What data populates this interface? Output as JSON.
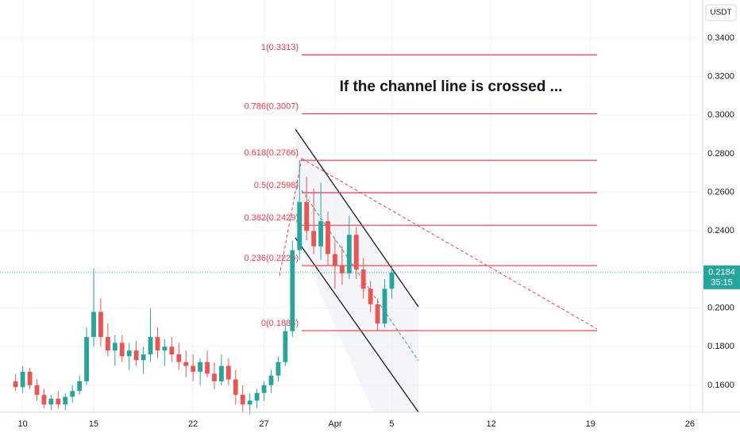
{
  "chart_data": {
    "type": "candlestick",
    "currency": "USDT",
    "annotation": "If the channel line is crossed ...",
    "last_price": 0.2184,
    "last_price_label": "0.2184",
    "countdown": "35:15",
    "up_color": "#26a69a",
    "down_color": "#ef5350",
    "fib_color": "#f23645",
    "grid": true,
    "xlim": [
      -1.6,
      47.9
    ],
    "ylim": [
      0.146,
      0.3597
    ],
    "xticks": [
      {
        "value": 0,
        "label": "10"
      },
      {
        "value": 5,
        "label": "15"
      },
      {
        "value": 12,
        "label": "22"
      },
      {
        "value": 17,
        "label": "27"
      },
      {
        "value": 22,
        "label": "Apr"
      },
      {
        "value": 26,
        "label": "5"
      },
      {
        "value": 33,
        "label": "12"
      },
      {
        "value": 40,
        "label": "19"
      },
      {
        "value": 47,
        "label": "26"
      }
    ],
    "yticks": [
      {
        "value": 0.16,
        "label": "0.1600"
      },
      {
        "value": 0.18,
        "label": "0.1800"
      },
      {
        "value": 0.2,
        "label": "0.2000"
      },
      {
        "value": 0.24,
        "label": "0.2400"
      },
      {
        "value": 0.26,
        "label": "0.2600"
      },
      {
        "value": 0.28,
        "label": "0.2800"
      },
      {
        "value": 0.3,
        "label": "0.3000"
      },
      {
        "value": 0.32,
        "label": "0.3200"
      },
      {
        "value": 0.34,
        "label": "0.3400"
      }
    ],
    "fib_levels": [
      {
        "label": "1(0.3313)",
        "value": 0.3313
      },
      {
        "label": "0.786(0.3007)",
        "value": 0.3007
      },
      {
        "label": "0.618(0.2766)",
        "value": 0.2766
      },
      {
        "label": "0.5(0.2598)",
        "value": 0.2598
      },
      {
        "label": "0.382(0.2429)",
        "value": 0.2429
      },
      {
        "label": "0.236(0.2220)",
        "value": 0.222
      },
      {
        "label": "0(0.1883)",
        "value": 0.1883
      }
    ],
    "x": [
      -0.5,
      0,
      0.5,
      1,
      1.5,
      2,
      2.5,
      3,
      3.5,
      4,
      4.5,
      5,
      5.5,
      6,
      6.5,
      7,
      7.5,
      8,
      8.5,
      9,
      9.5,
      10,
      10.5,
      11,
      11.5,
      12,
      12.5,
      13,
      13.5,
      14,
      14.5,
      15,
      15.5,
      16,
      16.5,
      17,
      17.5,
      18,
      18.5,
      19,
      19.5,
      20,
      20.5,
      21,
      21.5,
      22,
      22.5,
      23,
      23.5,
      24,
      24.5,
      25,
      25.5,
      26
    ],
    "open": [
      0.162,
      0.159,
      0.167,
      0.16,
      0.155,
      0.15,
      0.153,
      0.15,
      0.154,
      0.157,
      0.162,
      0.185,
      0.198,
      0.185,
      0.178,
      0.182,
      0.175,
      0.178,
      0.173,
      0.176,
      0.185,
      0.178,
      0.18,
      0.176,
      0.172,
      0.17,
      0.167,
      0.172,
      0.166,
      0.162,
      0.17,
      0.163,
      0.155,
      0.15,
      0.152,
      0.156,
      0.16,
      0.165,
      0.172,
      0.188,
      0.23,
      0.255,
      0.24,
      0.232,
      0.245,
      0.228,
      0.222,
      0.218,
      0.238,
      0.22,
      0.21,
      0.202,
      0.192,
      0.21
    ],
    "high": [
      0.166,
      0.17,
      0.169,
      0.163,
      0.158,
      0.155,
      0.157,
      0.156,
      0.16,
      0.165,
      0.19,
      0.2205,
      0.205,
      0.192,
      0.186,
      0.186,
      0.182,
      0.183,
      0.18,
      0.2,
      0.19,
      0.184,
      0.185,
      0.182,
      0.178,
      0.176,
      0.174,
      0.178,
      0.172,
      0.176,
      0.174,
      0.168,
      0.16,
      0.156,
      0.158,
      0.162,
      0.168,
      0.175,
      0.192,
      0.235,
      0.2766,
      0.268,
      0.262,
      0.265,
      0.25,
      0.236,
      0.232,
      0.248,
      0.242,
      0.226,
      0.214,
      0.205,
      0.215,
      0.222
    ],
    "low": [
      0.157,
      0.156,
      0.158,
      0.152,
      0.148,
      0.147,
      0.148,
      0.147,
      0.151,
      0.155,
      0.16,
      0.18,
      0.18,
      0.175,
      0.17,
      0.172,
      0.168,
      0.17,
      0.166,
      0.172,
      0.174,
      0.17,
      0.172,
      0.168,
      0.164,
      0.162,
      0.16,
      0.164,
      0.158,
      0.16,
      0.16,
      0.15,
      0.146,
      0.145,
      0.148,
      0.152,
      0.156,
      0.162,
      0.17,
      0.185,
      0.225,
      0.235,
      0.228,
      0.225,
      0.222,
      0.21,
      0.212,
      0.215,
      0.215,
      0.205,
      0.198,
      0.1883,
      0.19,
      0.205
    ],
    "close": [
      0.159,
      0.167,
      0.16,
      0.155,
      0.15,
      0.153,
      0.15,
      0.154,
      0.157,
      0.162,
      0.185,
      0.198,
      0.185,
      0.178,
      0.182,
      0.175,
      0.178,
      0.173,
      0.176,
      0.185,
      0.178,
      0.18,
      0.176,
      0.172,
      0.17,
      0.167,
      0.172,
      0.166,
      0.162,
      0.17,
      0.163,
      0.155,
      0.15,
      0.152,
      0.156,
      0.16,
      0.165,
      0.172,
      0.188,
      0.23,
      0.255,
      0.24,
      0.232,
      0.245,
      0.228,
      0.222,
      0.218,
      0.238,
      0.22,
      0.21,
      0.202,
      0.192,
      0.21,
      0.2184
    ]
  }
}
